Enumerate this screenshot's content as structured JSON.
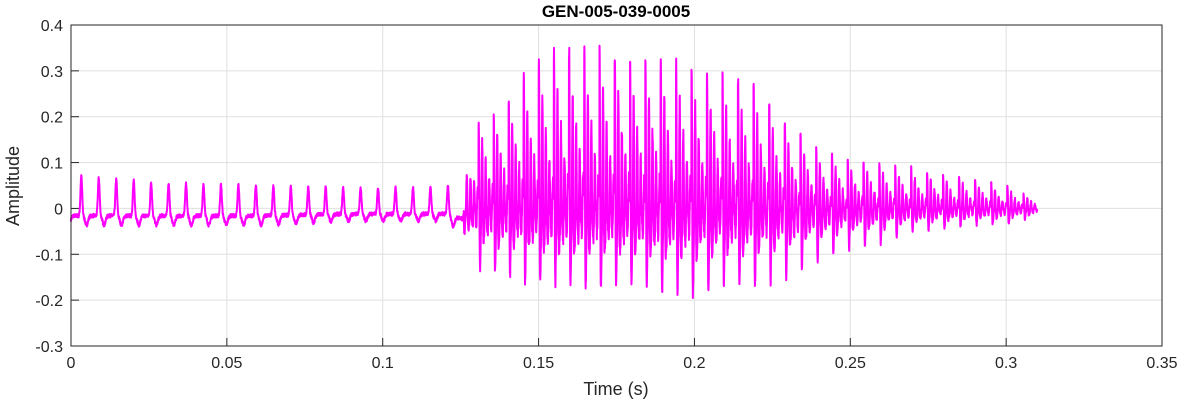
{
  "chart_data": {
    "type": "line",
    "title": "GEN-005-039-0005",
    "xlabel": "Time (s)",
    "ylabel": "Amplitude",
    "xlim": [
      0,
      0.35
    ],
    "ylim": [
      -0.3,
      0.4
    ],
    "xticks": [
      0,
      0.05,
      0.1,
      0.15,
      0.2,
      0.25,
      0.3,
      0.35
    ],
    "xtick_labels": [
      "0",
      "0.05",
      "0.1",
      "0.15",
      "0.2",
      "0.25",
      "0.3",
      "0.35"
    ],
    "yticks": [
      -0.3,
      -0.2,
      -0.1,
      0,
      0.1,
      0.2,
      0.3,
      0.4
    ],
    "ytick_labels": [
      "-0.3",
      "-0.2",
      "-0.1",
      "0",
      "0.1",
      "0.2",
      "0.3",
      "0.4"
    ],
    "grid": true,
    "color": "#ff00ff",
    "series": [
      {
        "name": "waveform",
        "signal_end": 0.31,
        "pitch_period_s": [
          [
            0,
            0.0056
          ],
          [
            0.125,
            0.0056
          ],
          [
            0.13,
            0.0048
          ],
          [
            0.31,
            0.0052
          ]
        ],
        "envelope": [
          {
            "t": 0.0,
            "max": 0.02,
            "min": -0.04
          },
          {
            "t": 0.003,
            "max": 0.07,
            "min": -0.04
          },
          {
            "t": 0.03,
            "max": 0.055,
            "min": -0.04
          },
          {
            "t": 0.06,
            "max": 0.05,
            "min": -0.04
          },
          {
            "t": 0.09,
            "max": 0.045,
            "min": -0.03
          },
          {
            "t": 0.12,
            "max": 0.045,
            "min": -0.03
          },
          {
            "t": 0.126,
            "max": 0.07,
            "min": -0.06
          },
          {
            "t": 0.13,
            "max": 0.17,
            "min": -0.15
          },
          {
            "t": 0.14,
            "max": 0.22,
            "min": -0.17
          },
          {
            "t": 0.15,
            "max": 0.3,
            "min": -0.19
          },
          {
            "t": 0.16,
            "max": 0.32,
            "min": -0.19
          },
          {
            "t": 0.17,
            "max": 0.32,
            "min": -0.2
          },
          {
            "t": 0.18,
            "max": 0.3,
            "min": -0.19
          },
          {
            "t": 0.19,
            "max": 0.3,
            "min": -0.21
          },
          {
            "t": 0.2,
            "max": 0.28,
            "min": -0.22
          },
          {
            "t": 0.21,
            "max": 0.27,
            "min": -0.19
          },
          {
            "t": 0.22,
            "max": 0.25,
            "min": -0.2
          },
          {
            "t": 0.23,
            "max": 0.17,
            "min": -0.17
          },
          {
            "t": 0.24,
            "max": 0.12,
            "min": -0.13
          },
          {
            "t": 0.25,
            "max": 0.1,
            "min": -0.1
          },
          {
            "t": 0.26,
            "max": 0.09,
            "min": -0.09
          },
          {
            "t": 0.27,
            "max": 0.08,
            "min": -0.06
          },
          {
            "t": 0.28,
            "max": 0.07,
            "min": -0.05
          },
          {
            "t": 0.29,
            "max": 0.06,
            "min": -0.04
          },
          {
            "t": 0.3,
            "max": 0.045,
            "min": -0.04
          },
          {
            "t": 0.31,
            "max": 0.02,
            "min": -0.02
          }
        ]
      }
    ]
  }
}
